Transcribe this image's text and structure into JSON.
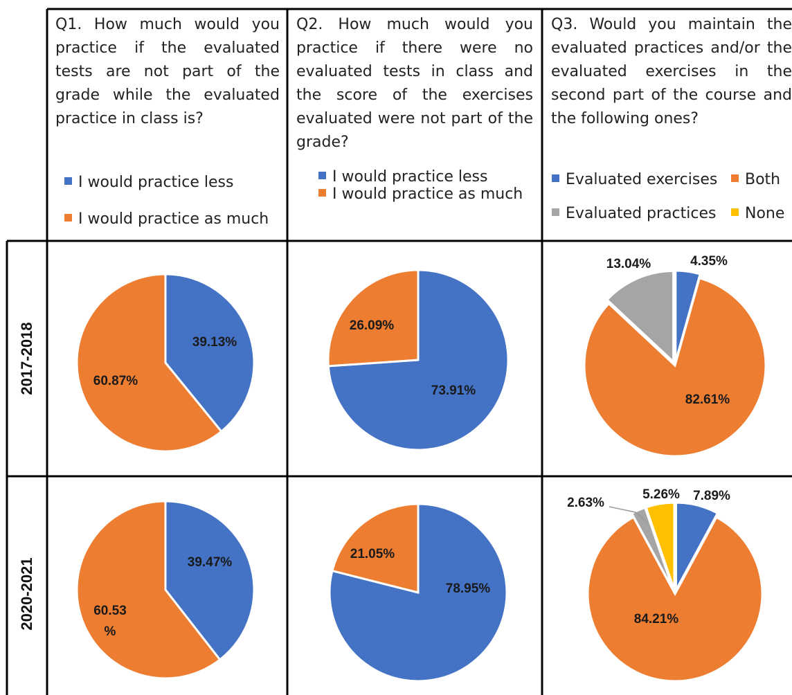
{
  "header": {
    "q1": "Q1. How much would you practice if the evaluated tests are not part of the grade while the evaluated practice in class is?",
    "q2": "Q2. How much would you practice if there were no evaluated tests in class and the score of the exercises evaluated were not part of the grade?",
    "q3": "Q3. Would you maintain the evaluated practices and/or the evaluated exercises in the second part of the course and the following ones?"
  },
  "legends": {
    "q1": [
      "I would practice less",
      "I would practice as much"
    ],
    "q2": [
      "I would practice less",
      "I would practice as much"
    ],
    "q3": [
      "Evaluated exercises",
      "Both",
      "Evaluated practices",
      "None"
    ]
  },
  "colors": {
    "blue": "#4472C4",
    "orange": "#ED7D31",
    "gray": "#A5A5A5",
    "yellow": "#FFC000"
  },
  "rows": [
    "2017-2018",
    "2020-2021"
  ],
  "chart_data": [
    {
      "type": "pie",
      "question": "Q1",
      "row": "2017-2018",
      "labels": [
        "I would practice less",
        "I would practice as much"
      ],
      "values": [
        39.13,
        60.87
      ],
      "data_labels": [
        "39.13%",
        "60.87%"
      ]
    },
    {
      "type": "pie",
      "question": "Q2",
      "row": "2017-2018",
      "labels": [
        "I would practice less",
        "I would practice as much"
      ],
      "values": [
        73.91,
        26.09
      ],
      "data_labels": [
        "73.91%",
        "26.09%"
      ]
    },
    {
      "type": "pie",
      "question": "Q3",
      "row": "2017-2018",
      "labels": [
        "Evaluated exercises",
        "Both",
        "Evaluated practices",
        "None"
      ],
      "values": [
        4.35,
        82.61,
        13.04,
        0
      ],
      "data_labels": [
        "4.35%",
        "82.61%",
        "13.04%",
        ""
      ]
    },
    {
      "type": "pie",
      "question": "Q1",
      "row": "2020-2021",
      "labels": [
        "I would practice less",
        "I would practice as much"
      ],
      "values": [
        39.47,
        60.53
      ],
      "data_labels": [
        "39.47%",
        "60.53\n%"
      ]
    },
    {
      "type": "pie",
      "question": "Q2",
      "row": "2020-2021",
      "labels": [
        "I would practice less",
        "I would practice as much"
      ],
      "values": [
        78.95,
        21.05
      ],
      "data_labels": [
        "78.95%",
        "21.05%"
      ]
    },
    {
      "type": "pie",
      "question": "Q3",
      "row": "2020-2021",
      "labels": [
        "Evaluated exercises",
        "Both",
        "Evaluated practices",
        "None"
      ],
      "values": [
        7.89,
        84.21,
        2.63,
        5.26
      ],
      "data_labels": [
        "7.89%",
        "84.21%",
        "2.63%",
        "5.26%"
      ]
    }
  ]
}
